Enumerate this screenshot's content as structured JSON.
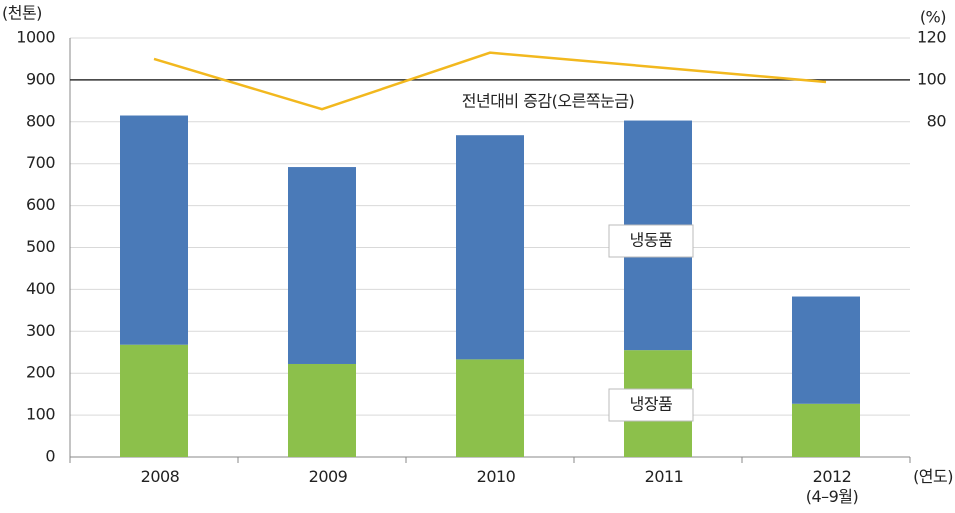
{
  "chart_data": {
    "type": "bar",
    "stacked": true,
    "y_label": "(천톤)",
    "y2_label": "(%)",
    "x_label": "(연도)",
    "categories": [
      "2008",
      "2009",
      "2010",
      "2011",
      "2012\n(4–9월)"
    ],
    "series": [
      {
        "name": "냉장품",
        "color": "#8cc04b",
        "values": [
          268,
          222,
          233,
          255,
          127
        ]
      },
      {
        "name": "냉동품",
        "color": "#4a7ab8",
        "values": [
          547,
          470,
          535,
          548,
          256
        ]
      },
      {
        "name": "전년대비 증감(오른쪽눈금)",
        "type": "line",
        "axis": "y2",
        "color": "#f2b81e",
        "values": [
          110,
          86,
          113,
          106,
          99
        ]
      }
    ],
    "ylim": [
      0,
      1000
    ],
    "yticks": [
      0,
      100,
      200,
      300,
      400,
      500,
      600,
      700,
      800,
      900,
      1000
    ],
    "y2lim": [
      -80,
      120
    ],
    "y2ticks": [
      80,
      100,
      120
    ],
    "reference_lines": [
      {
        "axis": "y2",
        "value": 100,
        "color": "#333333"
      }
    ],
    "grid": true
  }
}
